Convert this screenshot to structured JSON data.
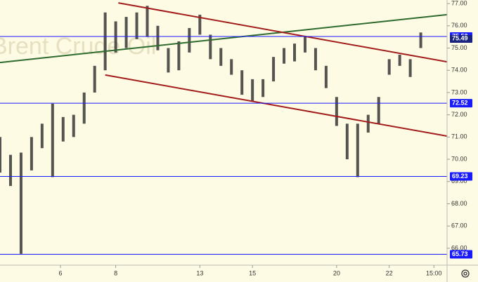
{
  "chart_data": {
    "type": "ohlc",
    "watermark": "Brent Crude Oil",
    "x": [
      0,
      4,
      8,
      12,
      16,
      20,
      24,
      28,
      32,
      36,
      40,
      44,
      48,
      52,
      56,
      60,
      64,
      68,
      72,
      76,
      80,
      84,
      88,
      92,
      96,
      100,
      104,
      108,
      112,
      116,
      120,
      124,
      128,
      132,
      136,
      140,
      144,
      148,
      152,
      156,
      160
    ],
    "low": [
      69.4,
      68.8,
      65.75,
      69.5,
      70.5,
      69.2,
      70.8,
      71.0,
      71.6,
      73.0,
      74.0,
      74.8,
      75.0,
      75.4,
      75.5,
      74.9,
      73.9,
      74.0,
      74.8,
      75.6,
      74.5,
      74.2,
      73.8,
      72.9,
      72.6,
      72.8,
      73.5,
      74.3,
      74.4,
      74.8,
      74.0,
      73.2,
      71.5,
      70.0,
      69.2,
      71.2,
      71.6,
      73.8,
      74.2,
      73.7,
      75.0
    ],
    "high": [
      71.0,
      70.2,
      70.3,
      71.0,
      71.6,
      72.5,
      71.9,
      72.0,
      73.0,
      74.2,
      76.6,
      76.2,
      76.4,
      76.6,
      76.9,
      76.0,
      75.0,
      75.3,
      75.9,
      76.5,
      75.6,
      75.0,
      74.5,
      74.0,
      73.6,
      73.6,
      74.6,
      75.0,
      75.2,
      75.5,
      75.0,
      74.2,
      72.8,
      71.6,
      71.6,
      72.0,
      72.8,
      74.5,
      74.7,
      74.5,
      75.7
    ],
    "bar_color": "#2b2b2b",
    "xlim": [
      0,
      170
    ],
    "xticks": [
      {
        "value": 23,
        "label": "6"
      },
      {
        "value": 44,
        "label": "8"
      },
      {
        "value": 76,
        "label": "13"
      },
      {
        "value": 96,
        "label": "15"
      },
      {
        "value": 128,
        "label": "20"
      },
      {
        "value": 148,
        "label": "22"
      },
      {
        "value": 165,
        "label": "15:00"
      }
    ],
    "ylim": [
      65.24,
      77.16
    ],
    "yticks": [
      {
        "value": 66,
        "label": "66.00"
      },
      {
        "value": 67,
        "label": "67.00"
      },
      {
        "value": 68,
        "label": "68.00"
      },
      {
        "value": 69,
        "label": "69.00"
      },
      {
        "value": 70,
        "label": "70.00"
      },
      {
        "value": 71,
        "label": "71.00"
      },
      {
        "value": 72,
        "label": "72.00"
      },
      {
        "value": 73,
        "label": "73.00"
      },
      {
        "value": 74,
        "label": "74.00"
      },
      {
        "value": 75,
        "label": "75.00"
      },
      {
        "value": 76,
        "label": "76.00"
      },
      {
        "value": 77,
        "label": "77.00"
      }
    ],
    "levels": [
      75.52,
      72.52,
      69.23,
      65.73
    ],
    "level_color": "#1a1aff",
    "last_price": 75.49,
    "last_price_color": "#1a237e",
    "trendlines": [
      {
        "color": "#2e6b2e",
        "x": [
          0,
          170
        ],
        "y": [
          74.35,
          76.5
        ]
      },
      {
        "color": "#a31c1c",
        "x": [
          45,
          170
        ],
        "y": [
          77.03,
          74.38
        ]
      },
      {
        "color": "#a31c1c",
        "x": [
          40,
          170
        ],
        "y": [
          73.79,
          71.04
        ]
      }
    ]
  }
}
